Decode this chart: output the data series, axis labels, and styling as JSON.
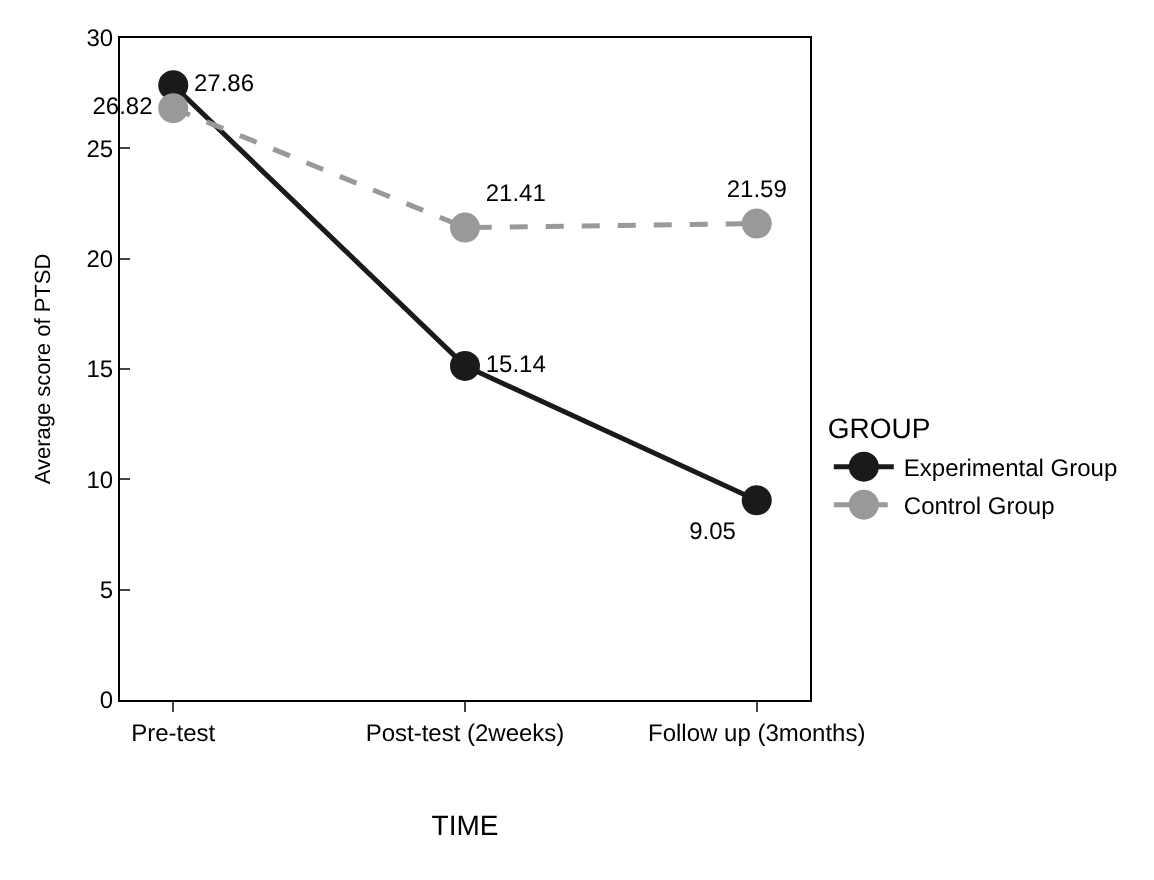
{
  "chart_data": {
    "type": "line",
    "xlabel": "TIME",
    "ylabel": "Average score of PTSD",
    "legend_title": "GROUP",
    "categories": [
      "Pre-test",
      "Post-test (2weeks)",
      "Follow up (3months)"
    ],
    "series": [
      {
        "name": "Experimental Group",
        "color": "#1a1a1a",
        "values": [
          27.86,
          15.14,
          9.05
        ],
        "line_style": "solid"
      },
      {
        "name": "Control Group",
        "color": "#999999",
        "values": [
          26.82,
          21.41,
          21.59
        ],
        "line_style": "dashed"
      }
    ],
    "ylim": [
      0,
      30
    ],
    "yticks": [
      0,
      5,
      10,
      15,
      20,
      25,
      30
    ],
    "legend": "right",
    "marker": "circle",
    "data_labels": true
  }
}
